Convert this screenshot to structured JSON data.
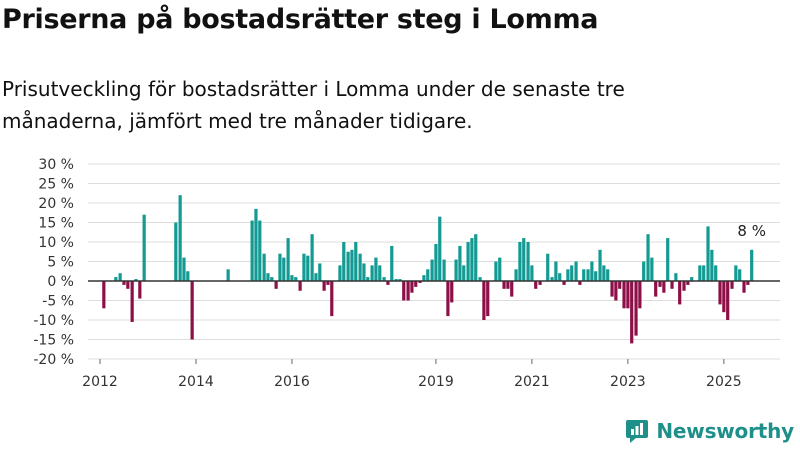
{
  "title": "Priserna på bostadsrätter steg i Lomma",
  "subtitle": "Prisutveckling för bostadsrätter i Lomma under de senaste tre månaderna, jämfört med tre månader tidigare.",
  "brand": "Newsworthy",
  "colors": {
    "positive": "#139a93",
    "negative": "#8c0f47",
    "gridline": "#dddddd",
    "zeroline": "#333333",
    "brand": "#1f8f8a"
  },
  "chart_data": {
    "type": "bar",
    "ylim": [
      -20,
      30
    ],
    "yticks": [
      -20,
      -15,
      -10,
      -5,
      0,
      5,
      10,
      15,
      20,
      25,
      30
    ],
    "ytick_labels": [
      "-20 %",
      "-15 %",
      "-10 %",
      "-5 %",
      "0 %",
      "5 %",
      "10 %",
      "15 %",
      "20 %",
      "25 %",
      "30 %"
    ],
    "xticks": [
      {
        "label": "2012",
        "at": 2012.0
      },
      {
        "label": "2014",
        "at": 2014.0
      },
      {
        "label": "2016",
        "at": 2016.0
      },
      {
        "label": "2019",
        "at": 2019.0
      },
      {
        "label": "2021",
        "at": 2021.0
      },
      {
        "label": "2023",
        "at": 2023.0
      },
      {
        "label": "2025",
        "at": 2025.0
      }
    ],
    "last_value_label": "8 %",
    "series": [
      {
        "points": [
          {
            "x": 2012.08,
            "y": -7
          },
          {
            "x": 2012.33,
            "y": 1
          },
          {
            "x": 2012.42,
            "y": 2
          },
          {
            "x": 2012.5,
            "y": -1
          },
          {
            "x": 2012.58,
            "y": -2
          },
          {
            "x": 2012.67,
            "y": -10.5
          },
          {
            "x": 2012.75,
            "y": 0.5
          },
          {
            "x": 2012.83,
            "y": -4.5
          },
          {
            "x": 2012.92,
            "y": 17
          },
          {
            "x": 2013.58,
            "y": 15
          },
          {
            "x": 2013.67,
            "y": 22
          },
          {
            "x": 2013.75,
            "y": 6
          },
          {
            "x": 2013.83,
            "y": 2.5
          },
          {
            "x": 2013.92,
            "y": -15
          },
          {
            "x": 2014.67,
            "y": 3
          },
          {
            "x": 2015.17,
            "y": 15.5
          },
          {
            "x": 2015.25,
            "y": 18.5
          },
          {
            "x": 2015.33,
            "y": 15.5
          },
          {
            "x": 2015.42,
            "y": 7
          },
          {
            "x": 2015.5,
            "y": 2
          },
          {
            "x": 2015.58,
            "y": 1
          },
          {
            "x": 2015.67,
            "y": -2
          },
          {
            "x": 2015.75,
            "y": 7
          },
          {
            "x": 2015.83,
            "y": 6
          },
          {
            "x": 2015.92,
            "y": 11
          },
          {
            "x": 2016.0,
            "y": 1.5
          },
          {
            "x": 2016.08,
            "y": 1
          },
          {
            "x": 2016.17,
            "y": -2.5
          },
          {
            "x": 2016.25,
            "y": 7
          },
          {
            "x": 2016.33,
            "y": 6.5
          },
          {
            "x": 2016.42,
            "y": 12
          },
          {
            "x": 2016.5,
            "y": 2
          },
          {
            "x": 2016.58,
            "y": 4.5
          },
          {
            "x": 2016.67,
            "y": -2.5
          },
          {
            "x": 2016.75,
            "y": -1
          },
          {
            "x": 2016.83,
            "y": -9
          },
          {
            "x": 2017.0,
            "y": 4
          },
          {
            "x": 2017.08,
            "y": 10
          },
          {
            "x": 2017.17,
            "y": 7.5
          },
          {
            "x": 2017.25,
            "y": 8
          },
          {
            "x": 2017.33,
            "y": 10
          },
          {
            "x": 2017.42,
            "y": 7
          },
          {
            "x": 2017.5,
            "y": 4.5
          },
          {
            "x": 2017.58,
            "y": 1
          },
          {
            "x": 2017.67,
            "y": 4
          },
          {
            "x": 2017.75,
            "y": 6
          },
          {
            "x": 2017.83,
            "y": 4
          },
          {
            "x": 2017.92,
            "y": 1
          },
          {
            "x": 2018.0,
            "y": -1
          },
          {
            "x": 2018.08,
            "y": 9
          },
          {
            "x": 2018.17,
            "y": 0.5
          },
          {
            "x": 2018.25,
            "y": 0.5
          },
          {
            "x": 2018.33,
            "y": -5
          },
          {
            "x": 2018.42,
            "y": -5
          },
          {
            "x": 2018.5,
            "y": -3
          },
          {
            "x": 2018.58,
            "y": -1.5
          },
          {
            "x": 2018.67,
            "y": -0.5
          },
          {
            "x": 2018.75,
            "y": 1.5
          },
          {
            "x": 2018.83,
            "y": 3
          },
          {
            "x": 2018.92,
            "y": 5.5
          },
          {
            "x": 2019.0,
            "y": 9.5
          },
          {
            "x": 2019.08,
            "y": 16.5
          },
          {
            "x": 2019.17,
            "y": 5.5
          },
          {
            "x": 2019.25,
            "y": -9
          },
          {
            "x": 2019.33,
            "y": -5.5
          },
          {
            "x": 2019.42,
            "y": 5.5
          },
          {
            "x": 2019.5,
            "y": 9
          },
          {
            "x": 2019.58,
            "y": 4
          },
          {
            "x": 2019.67,
            "y": 10
          },
          {
            "x": 2019.75,
            "y": 11
          },
          {
            "x": 2019.83,
            "y": 12
          },
          {
            "x": 2019.92,
            "y": 1
          },
          {
            "x": 2020.0,
            "y": -10
          },
          {
            "x": 2020.08,
            "y": -9
          },
          {
            "x": 2020.25,
            "y": 5
          },
          {
            "x": 2020.33,
            "y": 6
          },
          {
            "x": 2020.42,
            "y": -2
          },
          {
            "x": 2020.5,
            "y": -2
          },
          {
            "x": 2020.58,
            "y": -4
          },
          {
            "x": 2020.67,
            "y": 3
          },
          {
            "x": 2020.75,
            "y": 10
          },
          {
            "x": 2020.83,
            "y": 11
          },
          {
            "x": 2020.92,
            "y": 10
          },
          {
            "x": 2021.0,
            "y": 4
          },
          {
            "x": 2021.08,
            "y": -2
          },
          {
            "x": 2021.17,
            "y": -1
          },
          {
            "x": 2021.33,
            "y": 7
          },
          {
            "x": 2021.42,
            "y": 1
          },
          {
            "x": 2021.5,
            "y": 5
          },
          {
            "x": 2021.58,
            "y": 2
          },
          {
            "x": 2021.67,
            "y": -1
          },
          {
            "x": 2021.75,
            "y": 3
          },
          {
            "x": 2021.83,
            "y": 4
          },
          {
            "x": 2021.92,
            "y": 5
          },
          {
            "x": 2022.0,
            "y": -1
          },
          {
            "x": 2022.08,
            "y": 3
          },
          {
            "x": 2022.17,
            "y": 3
          },
          {
            "x": 2022.25,
            "y": 5
          },
          {
            "x": 2022.33,
            "y": 2.5
          },
          {
            "x": 2022.42,
            "y": 8
          },
          {
            "x": 2022.5,
            "y": 4
          },
          {
            "x": 2022.58,
            "y": 3
          },
          {
            "x": 2022.67,
            "y": -4
          },
          {
            "x": 2022.75,
            "y": -5
          },
          {
            "x": 2022.83,
            "y": -2
          },
          {
            "x": 2022.92,
            "y": -7
          },
          {
            "x": 2023.0,
            "y": -7
          },
          {
            "x": 2023.08,
            "y": -16
          },
          {
            "x": 2023.17,
            "y": -14
          },
          {
            "x": 2023.25,
            "y": -7
          },
          {
            "x": 2023.33,
            "y": 5
          },
          {
            "x": 2023.42,
            "y": 12
          },
          {
            "x": 2023.5,
            "y": 6
          },
          {
            "x": 2023.58,
            "y": -4
          },
          {
            "x": 2023.67,
            "y": -1.5
          },
          {
            "x": 2023.75,
            "y": -3
          },
          {
            "x": 2023.83,
            "y": 11
          },
          {
            "x": 2023.92,
            "y": -2
          },
          {
            "x": 2024.0,
            "y": 2
          },
          {
            "x": 2024.08,
            "y": -6
          },
          {
            "x": 2024.17,
            "y": -2.5
          },
          {
            "x": 2024.25,
            "y": -1
          },
          {
            "x": 2024.33,
            "y": 1
          },
          {
            "x": 2024.5,
            "y": 4
          },
          {
            "x": 2024.58,
            "y": 4
          },
          {
            "x": 2024.67,
            "y": 14
          },
          {
            "x": 2024.75,
            "y": 8
          },
          {
            "x": 2024.83,
            "y": 4
          },
          {
            "x": 2024.92,
            "y": -6
          },
          {
            "x": 2025.0,
            "y": -8
          },
          {
            "x": 2025.08,
            "y": -10
          },
          {
            "x": 2025.17,
            "y": -2
          },
          {
            "x": 2025.25,
            "y": 4
          },
          {
            "x": 2025.33,
            "y": 3
          },
          {
            "x": 2025.42,
            "y": -3
          },
          {
            "x": 2025.5,
            "y": -1
          },
          {
            "x": 2025.58,
            "y": 8
          }
        ]
      }
    ]
  }
}
